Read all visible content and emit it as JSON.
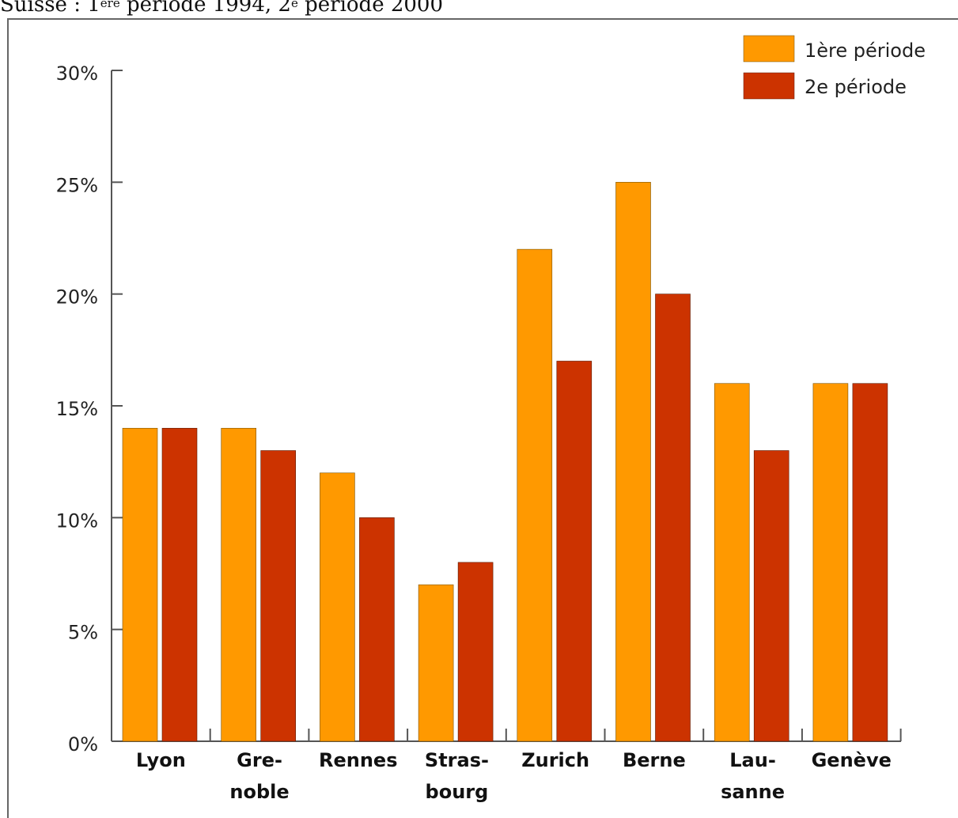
{
  "caption": {
    "country": "Suisse",
    "sep": " : ",
    "p1_num": "1",
    "p1_sup": "ère",
    "p1_rest": " période 1994, ",
    "p2_num": "2",
    "p2_sup": "e",
    "p2_rest": " période 2000"
  },
  "colors": {
    "series1": "#ff9900",
    "series2": "#cc3300",
    "axis": "#555555",
    "frame": "#666666"
  },
  "chart_data": {
    "type": "bar",
    "categories": [
      "Lyon",
      "Grenoble",
      "Rennes",
      "Strasbourg",
      "Zurich",
      "Berne",
      "Lausanne",
      "Genève"
    ],
    "category_labels": [
      [
        "Lyon"
      ],
      [
        "Gre-",
        "noble"
      ],
      [
        "Rennes"
      ],
      [
        "Stras-",
        "bourg"
      ],
      [
        "Zurich"
      ],
      [
        "Berne"
      ],
      [
        "Lau-",
        "sanne"
      ],
      [
        "Genève"
      ]
    ],
    "series": [
      {
        "name": "1ère période",
        "values": [
          14,
          14,
          12,
          7,
          22,
          25,
          16,
          16
        ]
      },
      {
        "name": "2e période",
        "values": [
          14,
          13,
          10,
          8,
          17,
          20,
          13,
          16
        ]
      }
    ],
    "yticks": [
      "0%",
      "5%",
      "10%",
      "15%",
      "20%",
      "25%",
      "30%"
    ],
    "ylim": [
      0,
      30
    ],
    "legend_position": "top-right",
    "grid": false
  }
}
